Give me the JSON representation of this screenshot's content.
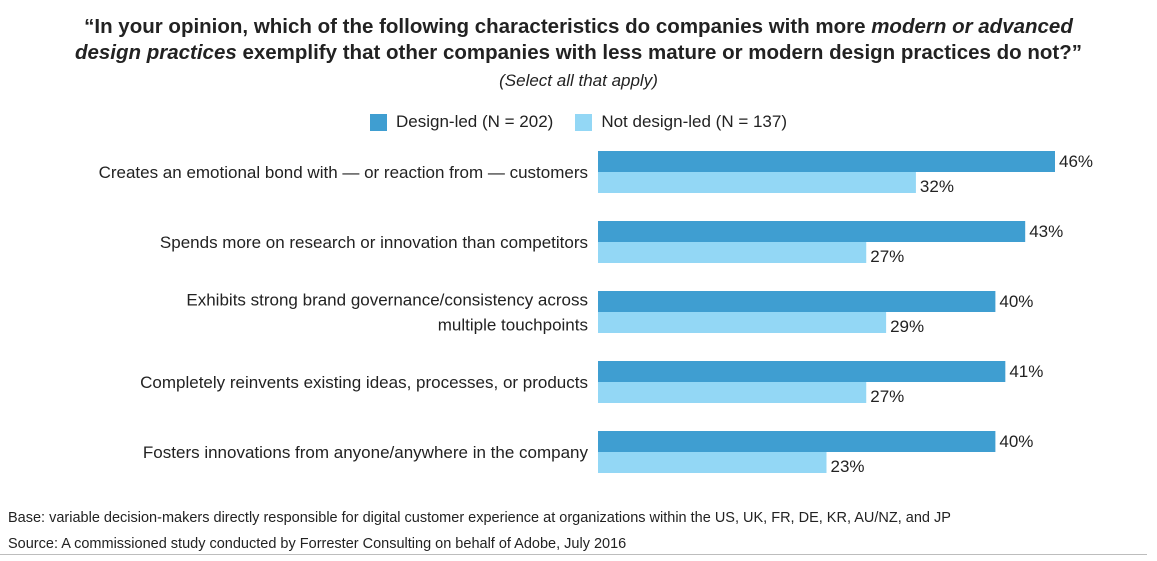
{
  "chart_data": {
    "type": "bar",
    "orientation": "horizontal",
    "title_parts": {
      "line1_prefix": "“In your opinion, which of the following characteristics do companies with more ",
      "line1_emph": "modern or advanced",
      "line2_emph": "design practices",
      "line2_suffix": " exemplify that other companies with less mature or modern design practices do not?”"
    },
    "subtitle": "(Select all that apply)",
    "categories": [
      [
        "Creates an emotional bond with — or reaction from — customers"
      ],
      [
        "Spends more on research or innovation than competitors"
      ],
      [
        "Exhibits strong brand governance/consistency across",
        "multiple touchpoints"
      ],
      [
        "Completely reinvents existing ideas, processes, or products"
      ],
      [
        "Fosters innovations from anyone/anywhere in the company"
      ]
    ],
    "series": [
      {
        "name": "Design-led (N = 202)",
        "color": "#3f9ed1",
        "values": [
          46,
          43,
          40,
          41,
          40
        ]
      },
      {
        "name": "Not design-led (N = 137)",
        "color": "#93d7f5",
        "values": [
          32,
          27,
          29,
          27,
          23
        ]
      }
    ],
    "value_suffix": "%",
    "xlim": [
      0,
      46
    ],
    "grid": false,
    "legend_position": "top-center",
    "notes": {
      "base": "Base: variable decision-makers directly responsible for digital customer experience at organizations within the US, UK, FR, DE, KR, AU/NZ, and JP",
      "source": "Source: A commissioned study conducted by Forrester Consulting on behalf of Adobe, July 2016"
    }
  }
}
